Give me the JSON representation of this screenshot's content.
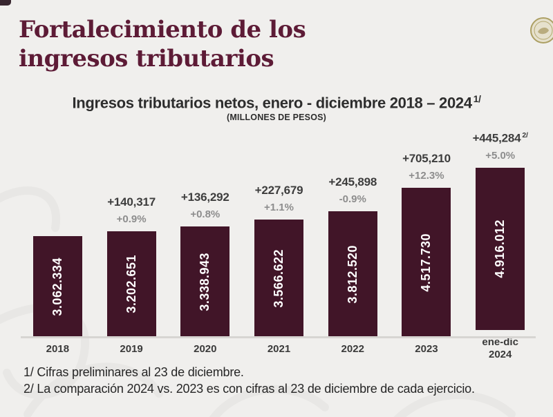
{
  "slide": {
    "title_lines": [
      "Fortalecimiento de los",
      "ingresos tributarios"
    ]
  },
  "chart_data": {
    "type": "bar",
    "title": "Ingresos tributarios netos, enero - diciembre 2018 – 2024",
    "title_footnote_ref": "1/",
    "units_label": "(MILLONES DE PESOS)",
    "categories": [
      "2018",
      "2019",
      "2020",
      "2021",
      "2022",
      "2023",
      "ene-dic 2024"
    ],
    "values": [
      3062334,
      3202651,
      3338943,
      3566622,
      3812520,
      4517730,
      4916012
    ],
    "ylim": [
      0,
      4916012
    ],
    "grid": "off",
    "legend": "none",
    "bars": [
      {
        "label": "2018",
        "label_line2": "",
        "value": 3062334,
        "display": "3.062.334",
        "delta": "",
        "delta_sup": "",
        "pct": ""
      },
      {
        "label": "2019",
        "label_line2": "",
        "value": 3202651,
        "display": "3.202.651",
        "delta": "+140,317",
        "delta_sup": "",
        "pct": "+0.9%"
      },
      {
        "label": "2020",
        "label_line2": "",
        "value": 3338943,
        "display": "3.338.943",
        "delta": "+136,292",
        "delta_sup": "",
        "pct": "+0.8%"
      },
      {
        "label": "2021",
        "label_line2": "",
        "value": 3566622,
        "display": "3.566.622",
        "delta": "+227,679",
        "delta_sup": "",
        "pct": "+1.1%"
      },
      {
        "label": "2022",
        "label_line2": "",
        "value": 3812520,
        "display": "3.812.520",
        "delta": "+245,898",
        "delta_sup": "",
        "pct": "-0.9%"
      },
      {
        "label": "2023",
        "label_line2": "",
        "value": 4517730,
        "display": "4.517.730",
        "delta": "+705,210",
        "delta_sup": "",
        "pct": "+12.3%"
      },
      {
        "label": "ene-dic",
        "label_line2": "2024",
        "value": 4916012,
        "display": "4.916.012",
        "delta": "+445,284",
        "delta_sup": "2/",
        "pct": "+5.0%"
      }
    ],
    "colors": {
      "bar": "#411528",
      "bar_value_label": "#ffffff",
      "delta_label": "#3d3d3d",
      "pct_label": "#8d8d8d",
      "title": "#5d1b36",
      "background": "#f0efed"
    }
  },
  "footnotes": [
    "1/  Cifras preliminares al 23 de diciembre.",
    "2/  La comparación 2024 vs. 2023 es con cifras al 23 de diciembre de cada ejercicio."
  ]
}
